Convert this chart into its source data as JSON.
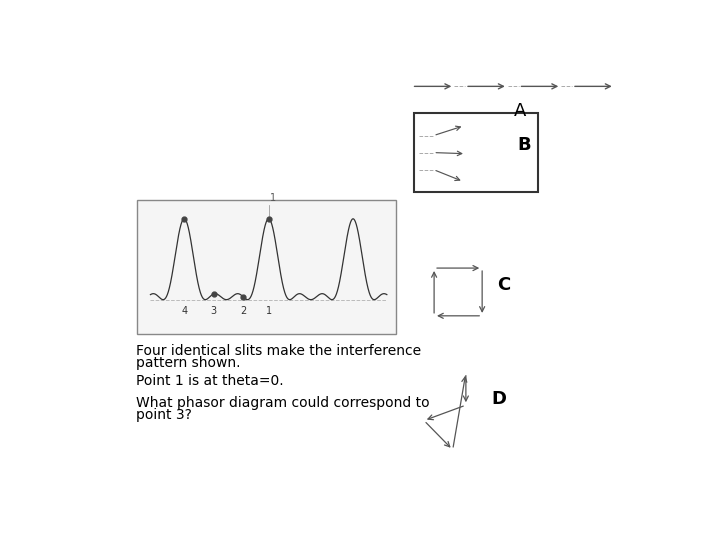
{
  "bg_color": "#ffffff",
  "text_color": "#000000",
  "text_A": "A",
  "text_B": "B",
  "text_C": "C",
  "text_D": "D",
  "label_line1": "Four identical slits make the interference",
  "label_line2": "pattern shown.",
  "label_line3": "Point 1 is at theta=0.",
  "label_line4": "What phasor diagram could correspond to",
  "label_line5": "point 3?",
  "font_size_labels": 10,
  "font_size_letter": 13,
  "arrow_color": "#555555",
  "dash_color": "#aaaaaa",
  "box_color": "#333333",
  "pattern_box_color": "#888888",
  "pattern_bg": "#f5f5f5",
  "pattern_line_color": "#333333",
  "baseline_color": "#aaaaaa",
  "pt_label_color": "#333333"
}
